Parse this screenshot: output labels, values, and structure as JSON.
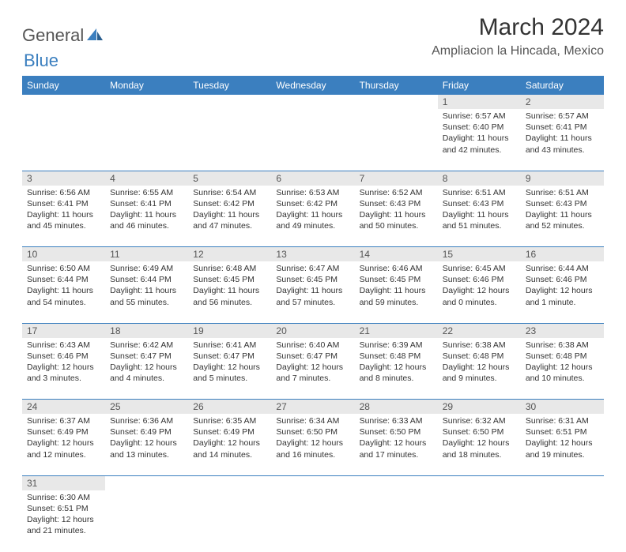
{
  "logo": {
    "text1": "General",
    "text2": "Blue"
  },
  "title": "March 2024",
  "location": "Ampliacion la Hincada, Mexico",
  "colors": {
    "header_bg": "#3b7fbf",
    "header_fg": "#ffffff",
    "daynum_bg": "#e8e8e8",
    "row_border": "#3b7fbf"
  },
  "weekdays": [
    "Sunday",
    "Monday",
    "Tuesday",
    "Wednesday",
    "Thursday",
    "Friday",
    "Saturday"
  ],
  "weeks": [
    [
      null,
      null,
      null,
      null,
      null,
      {
        "n": "1",
        "sr": "Sunrise: 6:57 AM",
        "ss": "Sunset: 6:40 PM",
        "dl": "Daylight: 11 hours and 42 minutes."
      },
      {
        "n": "2",
        "sr": "Sunrise: 6:57 AM",
        "ss": "Sunset: 6:41 PM",
        "dl": "Daylight: 11 hours and 43 minutes."
      }
    ],
    [
      {
        "n": "3",
        "sr": "Sunrise: 6:56 AM",
        "ss": "Sunset: 6:41 PM",
        "dl": "Daylight: 11 hours and 45 minutes."
      },
      {
        "n": "4",
        "sr": "Sunrise: 6:55 AM",
        "ss": "Sunset: 6:41 PM",
        "dl": "Daylight: 11 hours and 46 minutes."
      },
      {
        "n": "5",
        "sr": "Sunrise: 6:54 AM",
        "ss": "Sunset: 6:42 PM",
        "dl": "Daylight: 11 hours and 47 minutes."
      },
      {
        "n": "6",
        "sr": "Sunrise: 6:53 AM",
        "ss": "Sunset: 6:42 PM",
        "dl": "Daylight: 11 hours and 49 minutes."
      },
      {
        "n": "7",
        "sr": "Sunrise: 6:52 AM",
        "ss": "Sunset: 6:43 PM",
        "dl": "Daylight: 11 hours and 50 minutes."
      },
      {
        "n": "8",
        "sr": "Sunrise: 6:51 AM",
        "ss": "Sunset: 6:43 PM",
        "dl": "Daylight: 11 hours and 51 minutes."
      },
      {
        "n": "9",
        "sr": "Sunrise: 6:51 AM",
        "ss": "Sunset: 6:43 PM",
        "dl": "Daylight: 11 hours and 52 minutes."
      }
    ],
    [
      {
        "n": "10",
        "sr": "Sunrise: 6:50 AM",
        "ss": "Sunset: 6:44 PM",
        "dl": "Daylight: 11 hours and 54 minutes."
      },
      {
        "n": "11",
        "sr": "Sunrise: 6:49 AM",
        "ss": "Sunset: 6:44 PM",
        "dl": "Daylight: 11 hours and 55 minutes."
      },
      {
        "n": "12",
        "sr": "Sunrise: 6:48 AM",
        "ss": "Sunset: 6:45 PM",
        "dl": "Daylight: 11 hours and 56 minutes."
      },
      {
        "n": "13",
        "sr": "Sunrise: 6:47 AM",
        "ss": "Sunset: 6:45 PM",
        "dl": "Daylight: 11 hours and 57 minutes."
      },
      {
        "n": "14",
        "sr": "Sunrise: 6:46 AM",
        "ss": "Sunset: 6:45 PM",
        "dl": "Daylight: 11 hours and 59 minutes."
      },
      {
        "n": "15",
        "sr": "Sunrise: 6:45 AM",
        "ss": "Sunset: 6:46 PM",
        "dl": "Daylight: 12 hours and 0 minutes."
      },
      {
        "n": "16",
        "sr": "Sunrise: 6:44 AM",
        "ss": "Sunset: 6:46 PM",
        "dl": "Daylight: 12 hours and 1 minute."
      }
    ],
    [
      {
        "n": "17",
        "sr": "Sunrise: 6:43 AM",
        "ss": "Sunset: 6:46 PM",
        "dl": "Daylight: 12 hours and 3 minutes."
      },
      {
        "n": "18",
        "sr": "Sunrise: 6:42 AM",
        "ss": "Sunset: 6:47 PM",
        "dl": "Daylight: 12 hours and 4 minutes."
      },
      {
        "n": "19",
        "sr": "Sunrise: 6:41 AM",
        "ss": "Sunset: 6:47 PM",
        "dl": "Daylight: 12 hours and 5 minutes."
      },
      {
        "n": "20",
        "sr": "Sunrise: 6:40 AM",
        "ss": "Sunset: 6:47 PM",
        "dl": "Daylight: 12 hours and 7 minutes."
      },
      {
        "n": "21",
        "sr": "Sunrise: 6:39 AM",
        "ss": "Sunset: 6:48 PM",
        "dl": "Daylight: 12 hours and 8 minutes."
      },
      {
        "n": "22",
        "sr": "Sunrise: 6:38 AM",
        "ss": "Sunset: 6:48 PM",
        "dl": "Daylight: 12 hours and 9 minutes."
      },
      {
        "n": "23",
        "sr": "Sunrise: 6:38 AM",
        "ss": "Sunset: 6:48 PM",
        "dl": "Daylight: 12 hours and 10 minutes."
      }
    ],
    [
      {
        "n": "24",
        "sr": "Sunrise: 6:37 AM",
        "ss": "Sunset: 6:49 PM",
        "dl": "Daylight: 12 hours and 12 minutes."
      },
      {
        "n": "25",
        "sr": "Sunrise: 6:36 AM",
        "ss": "Sunset: 6:49 PM",
        "dl": "Daylight: 12 hours and 13 minutes."
      },
      {
        "n": "26",
        "sr": "Sunrise: 6:35 AM",
        "ss": "Sunset: 6:49 PM",
        "dl": "Daylight: 12 hours and 14 minutes."
      },
      {
        "n": "27",
        "sr": "Sunrise: 6:34 AM",
        "ss": "Sunset: 6:50 PM",
        "dl": "Daylight: 12 hours and 16 minutes."
      },
      {
        "n": "28",
        "sr": "Sunrise: 6:33 AM",
        "ss": "Sunset: 6:50 PM",
        "dl": "Daylight: 12 hours and 17 minutes."
      },
      {
        "n": "29",
        "sr": "Sunrise: 6:32 AM",
        "ss": "Sunset: 6:50 PM",
        "dl": "Daylight: 12 hours and 18 minutes."
      },
      {
        "n": "30",
        "sr": "Sunrise: 6:31 AM",
        "ss": "Sunset: 6:51 PM",
        "dl": "Daylight: 12 hours and 19 minutes."
      }
    ],
    [
      {
        "n": "31",
        "sr": "Sunrise: 6:30 AM",
        "ss": "Sunset: 6:51 PM",
        "dl": "Daylight: 12 hours and 21 minutes."
      },
      null,
      null,
      null,
      null,
      null,
      null
    ]
  ]
}
